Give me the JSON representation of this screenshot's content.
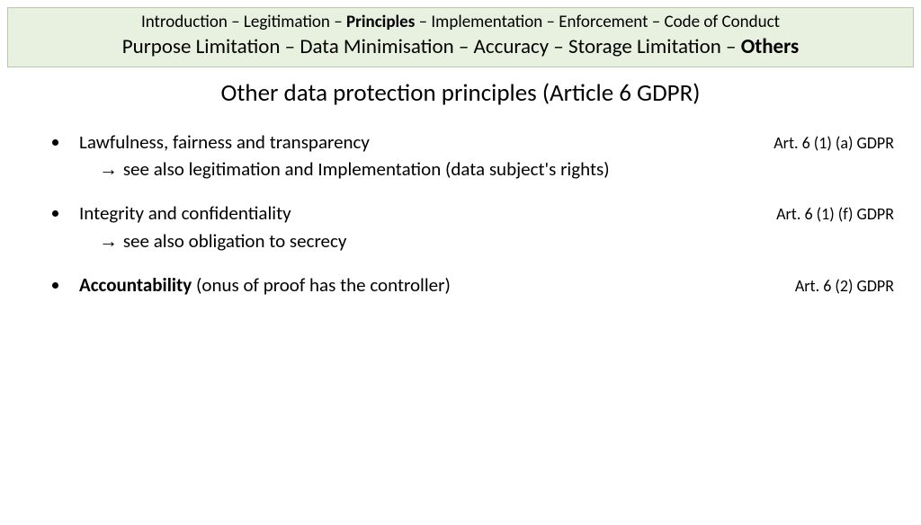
{
  "header": {
    "line1_parts": [
      {
        "text": "Introduction – Legitimation – ",
        "bold": false
      },
      {
        "text": "Principles",
        "bold": true
      },
      {
        "text": " – Implementation – Enforcement – Code of Conduct",
        "bold": false
      }
    ],
    "line2_parts": [
      {
        "text": "Purpose Limitation – Data Minimisation – Accuracy – Storage Limitation – ",
        "bold": false
      },
      {
        "text": "Others",
        "bold": true
      }
    ]
  },
  "title": "Other data protection principles (Article 6 GDPR)",
  "items": [
    {
      "main_parts": [
        {
          "text": "Lawfulness, fairness and transparency",
          "bold": false
        }
      ],
      "ref": "Art. 6 (1) (a) GDPR",
      "sub": "see also legitimation and Implementation (data subject's rights)"
    },
    {
      "main_parts": [
        {
          "text": "Integrity and confidentiality",
          "bold": false
        }
      ],
      "ref": "Art. 6 (1) (f) GDPR",
      "sub": "see also obligation to secrecy"
    },
    {
      "main_parts": [
        {
          "text": "Accountability",
          "bold": true
        },
        {
          "text": " (onus of proof has the controller)",
          "bold": false
        }
      ],
      "ref": "Art. 6 (2) GDPR",
      "sub": null
    }
  ],
  "arrow": "→",
  "styling": {
    "header_bg": "#e8f0df",
    "header_border": "#b8c9a8",
    "page_bg": "#ffffff",
    "text_color": "#000000",
    "header_line1_fontsize": 19,
    "header_line2_fontsize": 23,
    "title_fontsize": 27,
    "body_fontsize": 21,
    "ref_fontsize": 18
  }
}
